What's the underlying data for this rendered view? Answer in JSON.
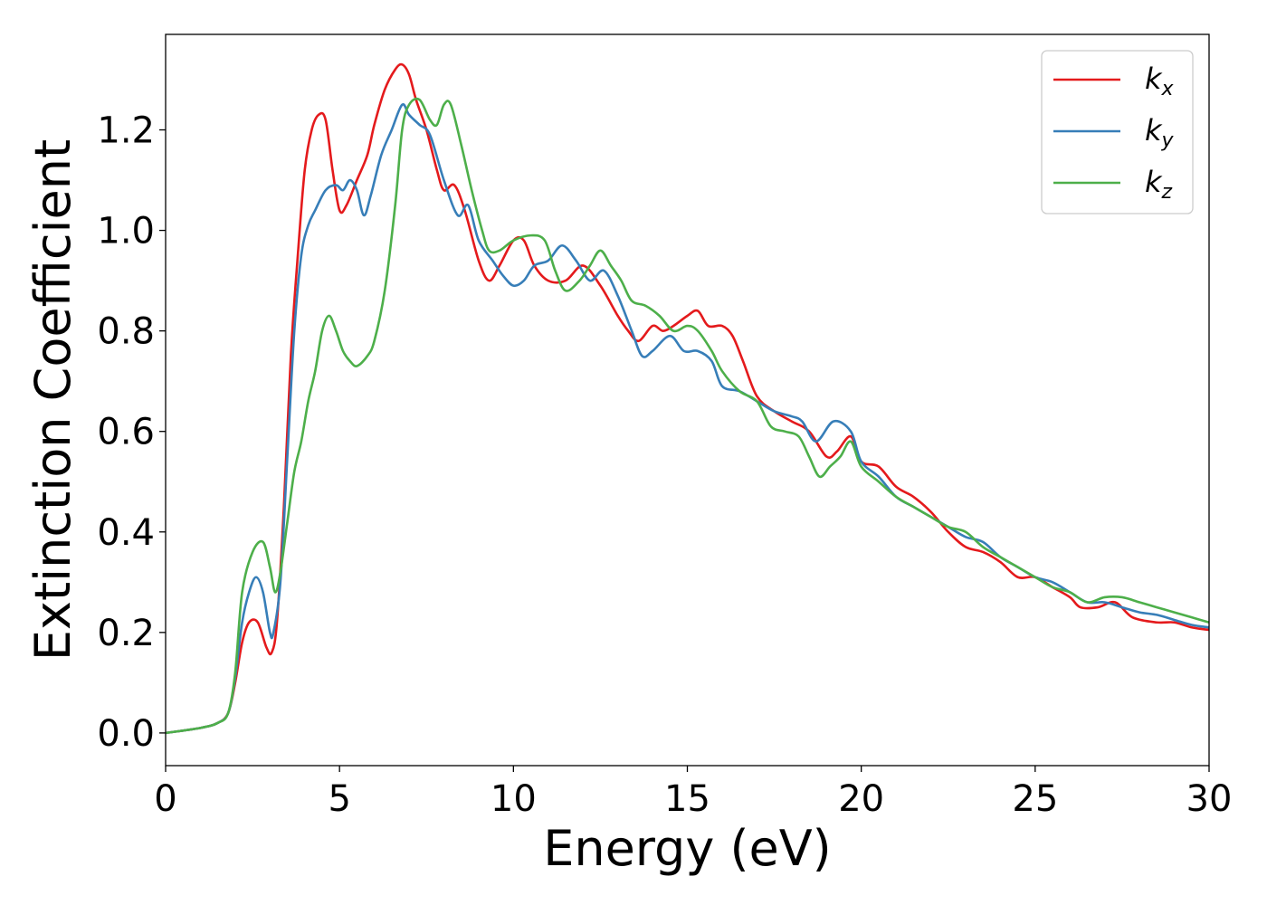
{
  "chart_data": {
    "type": "line",
    "title": "",
    "xlabel": "Energy (eV)",
    "ylabel": "Extinction Coefficient",
    "xlim": [
      0,
      30
    ],
    "ylim": [
      -0.065,
      1.39
    ],
    "xticks": [
      0,
      5,
      10,
      15,
      20,
      25,
      30
    ],
    "xtick_labels": [
      "0",
      "5",
      "10",
      "15",
      "20",
      "25",
      "30"
    ],
    "yticks": [
      0.0,
      0.2,
      0.4,
      0.6,
      0.8,
      1.0,
      1.2
    ],
    "ytick_labels": [
      "0.0",
      "0.2",
      "0.4",
      "0.6",
      "0.8",
      "1.0",
      "1.2"
    ],
    "grid": false,
    "legend_position": "top-right",
    "series": [
      {
        "name": "k_x",
        "label_base": "k",
        "label_sub": "x",
        "color": "#e41a1c",
        "x": [
          0,
          1,
          1.5,
          1.8,
          2.0,
          2.2,
          2.4,
          2.65,
          2.9,
          3.05,
          3.2,
          3.4,
          3.6,
          3.8,
          4.0,
          4.2,
          4.4,
          4.6,
          4.8,
          5.0,
          5.2,
          5.5,
          5.8,
          6.0,
          6.3,
          6.6,
          6.8,
          7.0,
          7.2,
          7.5,
          7.8,
          8.0,
          8.3,
          8.6,
          9.0,
          9.3,
          9.6,
          10.0,
          10.3,
          10.6,
          11.0,
          11.5,
          12.0,
          12.5,
          13.0,
          13.3,
          13.6,
          14.0,
          14.3,
          14.6,
          15.0,
          15.3,
          15.6,
          16.0,
          16.3,
          16.6,
          17.0,
          17.5,
          18.0,
          18.5,
          19.0,
          19.3,
          19.7,
          20.0,
          20.5,
          21.0,
          21.5,
          22.0,
          22.5,
          23.0,
          23.5,
          24.0,
          24.5,
          25.0,
          25.5,
          26.0,
          26.3,
          26.8,
          27.3,
          27.8,
          28.5,
          29.0,
          29.5,
          30.0
        ],
        "y": [
          0.0,
          0.01,
          0.02,
          0.04,
          0.1,
          0.18,
          0.22,
          0.22,
          0.17,
          0.16,
          0.22,
          0.45,
          0.75,
          0.95,
          1.12,
          1.2,
          1.23,
          1.22,
          1.12,
          1.04,
          1.05,
          1.1,
          1.15,
          1.21,
          1.28,
          1.32,
          1.33,
          1.31,
          1.26,
          1.2,
          1.12,
          1.08,
          1.09,
          1.04,
          0.94,
          0.9,
          0.93,
          0.98,
          0.98,
          0.93,
          0.9,
          0.9,
          0.93,
          0.89,
          0.83,
          0.8,
          0.78,
          0.81,
          0.8,
          0.81,
          0.83,
          0.84,
          0.81,
          0.81,
          0.79,
          0.74,
          0.67,
          0.64,
          0.62,
          0.6,
          0.55,
          0.56,
          0.59,
          0.54,
          0.53,
          0.49,
          0.47,
          0.44,
          0.4,
          0.37,
          0.36,
          0.34,
          0.31,
          0.31,
          0.29,
          0.27,
          0.25,
          0.25,
          0.26,
          0.23,
          0.22,
          0.22,
          0.21,
          0.205
        ]
      },
      {
        "name": "k_y",
        "label_base": "k",
        "label_sub": "y",
        "color": "#377eb8",
        "x": [
          0,
          1,
          1.5,
          1.8,
          2.0,
          2.2,
          2.4,
          2.6,
          2.8,
          3.0,
          3.1,
          3.3,
          3.5,
          3.7,
          3.9,
          4.1,
          4.3,
          4.6,
          4.9,
          5.1,
          5.3,
          5.5,
          5.7,
          5.9,
          6.2,
          6.5,
          6.8,
          7.0,
          7.3,
          7.6,
          8.0,
          8.4,
          8.7,
          9.0,
          9.4,
          9.7,
          10.0,
          10.3,
          10.6,
          11.0,
          11.4,
          11.8,
          12.2,
          12.6,
          13.0,
          13.4,
          13.7,
          14.0,
          14.5,
          14.9,
          15.3,
          15.7,
          16.0,
          16.5,
          17.0,
          17.5,
          18.0,
          18.3,
          18.7,
          19.2,
          19.7,
          20.0,
          20.5,
          21.0,
          21.5,
          22.0,
          22.5,
          23.0,
          23.5,
          24.0,
          24.5,
          25.0,
          25.5,
          26.0,
          26.5,
          27.0,
          27.5,
          28.0,
          28.5,
          29.0,
          29.5,
          30.0
        ],
        "y": [
          0.0,
          0.01,
          0.02,
          0.04,
          0.11,
          0.22,
          0.28,
          0.31,
          0.28,
          0.2,
          0.2,
          0.3,
          0.55,
          0.8,
          0.95,
          1.01,
          1.04,
          1.08,
          1.09,
          1.08,
          1.1,
          1.08,
          1.03,
          1.07,
          1.15,
          1.2,
          1.25,
          1.23,
          1.21,
          1.19,
          1.1,
          1.03,
          1.05,
          0.98,
          0.94,
          0.91,
          0.89,
          0.9,
          0.93,
          0.94,
          0.97,
          0.94,
          0.9,
          0.92,
          0.87,
          0.8,
          0.75,
          0.76,
          0.79,
          0.76,
          0.76,
          0.74,
          0.69,
          0.68,
          0.66,
          0.64,
          0.63,
          0.62,
          0.58,
          0.62,
          0.6,
          0.54,
          0.51,
          0.47,
          0.45,
          0.43,
          0.41,
          0.39,
          0.38,
          0.35,
          0.33,
          0.31,
          0.3,
          0.28,
          0.26,
          0.26,
          0.25,
          0.24,
          0.235,
          0.225,
          0.215,
          0.21
        ]
      },
      {
        "name": "k_z",
        "label_base": "k",
        "label_sub": "z",
        "color": "#4daf4a",
        "x": [
          0,
          1,
          1.5,
          1.8,
          2.0,
          2.2,
          2.5,
          2.8,
          3.0,
          3.15,
          3.3,
          3.5,
          3.7,
          3.9,
          4.1,
          4.3,
          4.5,
          4.7,
          4.9,
          5.1,
          5.3,
          5.5,
          5.8,
          6.0,
          6.3,
          6.6,
          6.8,
          7.0,
          7.3,
          7.6,
          7.8,
          8.0,
          8.2,
          8.5,
          8.8,
          9.1,
          9.3,
          9.6,
          10.0,
          10.5,
          10.9,
          11.2,
          11.5,
          11.9,
          12.2,
          12.5,
          12.8,
          13.1,
          13.4,
          13.8,
          14.2,
          14.6,
          15.0,
          15.3,
          15.7,
          16.0,
          16.5,
          17.0,
          17.4,
          17.8,
          18.2,
          18.5,
          18.8,
          19.1,
          19.4,
          19.7,
          20.0,
          20.5,
          21.0,
          21.5,
          22.0,
          22.5,
          23.0,
          23.5,
          24.0,
          24.5,
          25.0,
          25.5,
          26.0,
          26.5,
          27.0,
          27.5,
          28.0,
          28.5,
          29.0,
          29.5,
          30.0
        ],
        "y": [
          0.0,
          0.01,
          0.02,
          0.04,
          0.12,
          0.28,
          0.36,
          0.38,
          0.33,
          0.28,
          0.32,
          0.42,
          0.52,
          0.58,
          0.66,
          0.72,
          0.8,
          0.83,
          0.8,
          0.76,
          0.74,
          0.73,
          0.75,
          0.78,
          0.88,
          1.05,
          1.2,
          1.25,
          1.26,
          1.22,
          1.21,
          1.25,
          1.25,
          1.17,
          1.08,
          1.0,
          0.96,
          0.96,
          0.98,
          0.99,
          0.98,
          0.92,
          0.88,
          0.9,
          0.93,
          0.96,
          0.93,
          0.9,
          0.86,
          0.85,
          0.83,
          0.8,
          0.81,
          0.8,
          0.76,
          0.72,
          0.68,
          0.66,
          0.61,
          0.6,
          0.59,
          0.55,
          0.51,
          0.53,
          0.55,
          0.58,
          0.53,
          0.5,
          0.47,
          0.45,
          0.43,
          0.41,
          0.4,
          0.37,
          0.35,
          0.33,
          0.31,
          0.29,
          0.28,
          0.26,
          0.27,
          0.27,
          0.26,
          0.25,
          0.24,
          0.23,
          0.22
        ]
      }
    ]
  }
}
